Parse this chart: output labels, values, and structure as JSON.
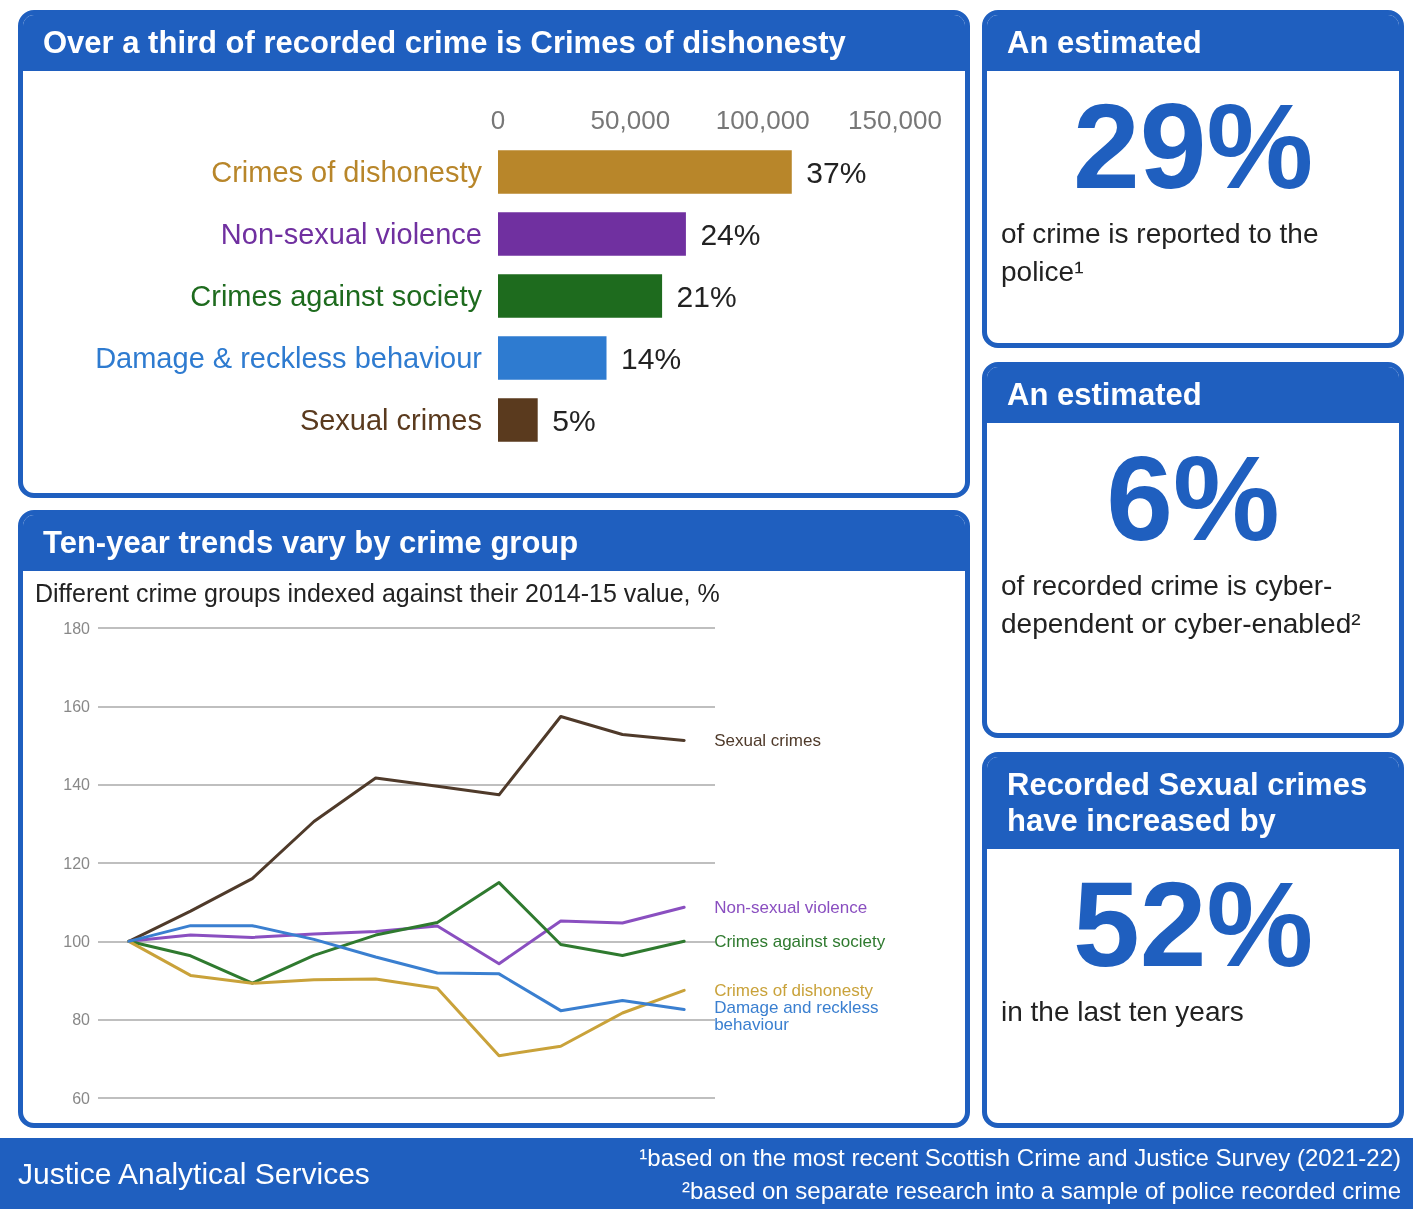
{
  "chart_data": [
    {
      "type": "bar",
      "orientation": "horizontal",
      "title": "Over a third of recorded crime is Crimes of dishonesty",
      "categories": [
        "Crimes of dishonesty",
        "Non-sexual violence",
        "Crimes against society",
        "Damage & reckless behaviour",
        "Sexual crimes"
      ],
      "values": [
        111000,
        71000,
        62000,
        41000,
        15000
      ],
      "colors": [
        "#b8862a",
        "#7030a0",
        "#1e6b1e",
        "#2e7bd0",
        "#5a3a1e"
      ],
      "annotations": [
        {
          "text": "37%",
          "x": 111000,
          "y": "Crimes of dishonesty"
        },
        {
          "text": "24%",
          "x": 71000,
          "y": "Non-sexual violence"
        },
        {
          "text": "21%",
          "x": 62000,
          "y": "Crimes against society"
        },
        {
          "text": "14%",
          "x": 41000,
          "y": "Damage & reckless behaviour"
        },
        {
          "text": "5%",
          "x": 15000,
          "y": "Sexual crimes"
        }
      ],
      "xlim": [
        0,
        150000
      ],
      "xticks": [
        {
          "value": 0,
          "label": "0"
        },
        {
          "value": 50000,
          "label": "50,000"
        },
        {
          "value": 100000,
          "label": "100,000"
        },
        {
          "value": 150000,
          "label": "150,000"
        }
      ],
      "grid": false,
      "legend": false
    },
    {
      "type": "line",
      "title": "Ten-year trends vary by crime group",
      "subtitle": "Different crime groups indexed against their 2014-15 value, %",
      "categories": [
        null,
        null,
        null,
        null,
        null,
        null,
        null,
        null,
        null,
        null
      ],
      "series": [
        {
          "name": "Sexual crimes",
          "color": "#4f3a2a",
          "values": [
            100,
            107.7,
            116,
            130.6,
            141.7,
            139.6,
            137.4,
            157.4,
            152.8,
            151.3
          ]
        },
        {
          "name": "Non-sexual violence",
          "color": "#8a4fc0",
          "values": [
            100,
            101.6,
            101,
            101.9,
            102.5,
            103.9,
            94.3,
            105.2,
            104.7,
            108.7
          ]
        },
        {
          "name": "Crimes against society",
          "color": "#2f7a2f",
          "values": [
            100,
            96.3,
            89.3,
            96.4,
            101.6,
            104.8,
            115,
            99.2,
            96.4,
            100
          ]
        },
        {
          "name": "Crimes of dishonesty",
          "color": "#c9a23a",
          "values": [
            100,
            91.3,
            89.3,
            90.2,
            90.4,
            88,
            70.8,
            73.2,
            81.7,
            87.5
          ]
        },
        {
          "name": "Damage and reckless behaviour",
          "color": "#3a7fd0",
          "values": [
            100,
            104,
            104,
            100.5,
            96,
            91.9,
            91.7,
            82.3,
            84.9,
            82.6
          ]
        }
      ],
      "ylim": [
        60,
        180
      ],
      "yticks": [
        60,
        80,
        100,
        120,
        140,
        160,
        180
      ],
      "grid": "y",
      "marker": "none",
      "line_style": "solid",
      "legend": false
    },
    {
      "type": "other",
      "title": "An estimated",
      "annotations": [
        "29%",
        "of crime is reported to the police¹"
      ]
    },
    {
      "type": "other",
      "title": "An estimated",
      "annotations": [
        "6%",
        "of recorded crime is cyber-dependent or cyber-enabled²"
      ]
    },
    {
      "type": "other",
      "title": "Recorded Sexual crimes have increased by",
      "annotations": [
        "52%",
        "in the last ten years"
      ]
    },
    {
      "type": "other",
      "annotations": [
        "Justice Analytical Services",
        "¹based on the most recent Scottish Crime and Justice Survey (2021-22)",
        "²based on separate research into a sample of police recorded crime"
      ]
    }
  ]
}
